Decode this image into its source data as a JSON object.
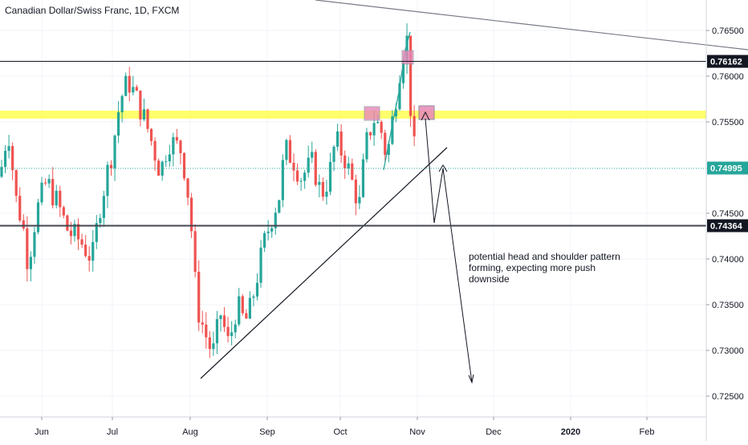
{
  "symbol_title": "Canadian Dollar/Swiss Franc, 1D, FXCM",
  "price_axis": {
    "ticks": [
      "0.76500",
      "0.76000",
      "0.75500",
      "0.74500",
      "0.74000",
      "0.73500",
      "0.73000",
      "0.72500"
    ],
    "tick_values": [
      0.765,
      0.76,
      0.755,
      0.745,
      0.74,
      0.735,
      0.73,
      0.725
    ]
  },
  "price_labels": [
    {
      "text": "0.76162",
      "value": 0.76162,
      "bg": "#131722"
    },
    {
      "text": "0.74995",
      "value": 0.74995,
      "bg": "#26a69a"
    },
    {
      "text": "0.74364",
      "value": 0.74364,
      "bg": "#131722"
    }
  ],
  "time_axis": {
    "labels": [
      "Jun",
      "Jul",
      "Aug",
      "Sep",
      "Oct",
      "Nov",
      "Dec",
      "2020",
      "Feb"
    ],
    "bold": [
      "2020"
    ]
  },
  "annotation": {
    "lines": [
      "potential head and shoulder pattern",
      "forming, expecting more push",
      "downside"
    ]
  },
  "colors": {
    "up": "#26a69a",
    "down": "#ef5350",
    "grid": "#f0f3fa",
    "zone": "#ffff3b",
    "marker": "#e888b8",
    "axis_text": "#131722"
  }
}
